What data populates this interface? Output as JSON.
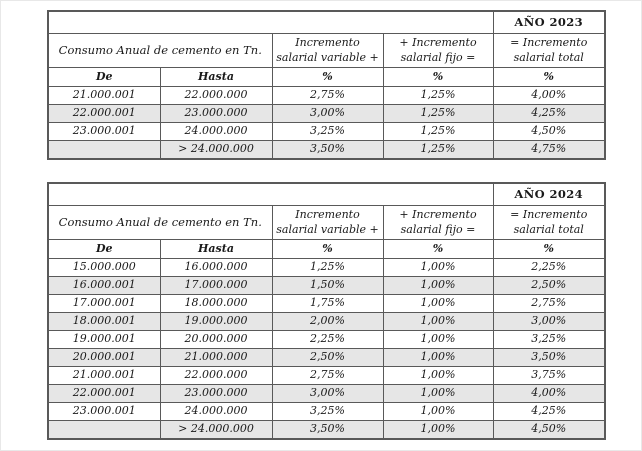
{
  "colors": {
    "background": "#ffffff",
    "row_shade": "#e6e6e6",
    "border": "#595959",
    "text": "#1a1a1a"
  },
  "tables": [
    {
      "year_label": "AÑO 2023",
      "headers": {
        "consumo": "Consumo Anual de cemento en Tn.",
        "variable": [
          "Incremento",
          "salarial variable +"
        ],
        "fijo": [
          "+ Incremento",
          "salarial fijo ="
        ],
        "total": [
          "= Incremento",
          "salarial total"
        ],
        "de": "De",
        "hasta": "Hasta",
        "pct": "%"
      },
      "rows": [
        {
          "de": "21.000.001",
          "hasta": "22.000.000",
          "variable": "2,75%",
          "fijo": "1,25%",
          "total": "4,00%",
          "shaded": false
        },
        {
          "de": "22.000.001",
          "hasta": "23.000.000",
          "variable": "3,00%",
          "fijo": "1,25%",
          "total": "4,25%",
          "shaded": true
        },
        {
          "de": "23.000.001",
          "hasta": "24.000.000",
          "variable": "3,25%",
          "fijo": "1,25%",
          "total": "4,50%",
          "shaded": false
        },
        {
          "de": "",
          "hasta": "> 24.000.000",
          "variable": "3,50%",
          "fijo": "1,25%",
          "total": "4,75%",
          "shaded": true
        }
      ]
    },
    {
      "year_label": "AÑO 2024",
      "headers": {
        "consumo": "Consumo Anual de cemento en Tn.",
        "variable": [
          "Incremento",
          "salarial variable +"
        ],
        "fijo": [
          "+ Incremento",
          "salarial fijo ="
        ],
        "total": [
          "= Incremento",
          "salarial total"
        ],
        "de": "De",
        "hasta": "Hasta",
        "pct": "%"
      },
      "rows": [
        {
          "de": "15.000.000",
          "hasta": "16.000.000",
          "variable": "1,25%",
          "fijo": "1,00%",
          "total": "2,25%",
          "shaded": false
        },
        {
          "de": "16.000.001",
          "hasta": "17.000.000",
          "variable": "1,50%",
          "fijo": "1,00%",
          "total": "2,50%",
          "shaded": true
        },
        {
          "de": "17.000.001",
          "hasta": "18.000.000",
          "variable": "1,75%",
          "fijo": "1,00%",
          "total": "2,75%",
          "shaded": false
        },
        {
          "de": "18.000.001",
          "hasta": "19.000.000",
          "variable": "2,00%",
          "fijo": "1,00%",
          "total": "3,00%",
          "shaded": true
        },
        {
          "de": "19.000.001",
          "hasta": "20.000.000",
          "variable": "2,25%",
          "fijo": "1,00%",
          "total": "3,25%",
          "shaded": false
        },
        {
          "de": "20.000.001",
          "hasta": "21.000.000",
          "variable": "2,50%",
          "fijo": "1,00%",
          "total": "3,50%",
          "shaded": true
        },
        {
          "de": "21.000.001",
          "hasta": "22.000.000",
          "variable": "2,75%",
          "fijo": "1,00%",
          "total": "3,75%",
          "shaded": false
        },
        {
          "de": "22.000.001",
          "hasta": "23.000.000",
          "variable": "3,00%",
          "fijo": "1,00%",
          "total": "4,00%",
          "shaded": true
        },
        {
          "de": "23.000.001",
          "hasta": "24.000.000",
          "variable": "3,25%",
          "fijo": "1,00%",
          "total": "4,25%",
          "shaded": false
        },
        {
          "de": "",
          "hasta": "> 24.000.000",
          "variable": "3,50%",
          "fijo": "1,00%",
          "total": "4,50%",
          "shaded": true
        }
      ]
    }
  ]
}
